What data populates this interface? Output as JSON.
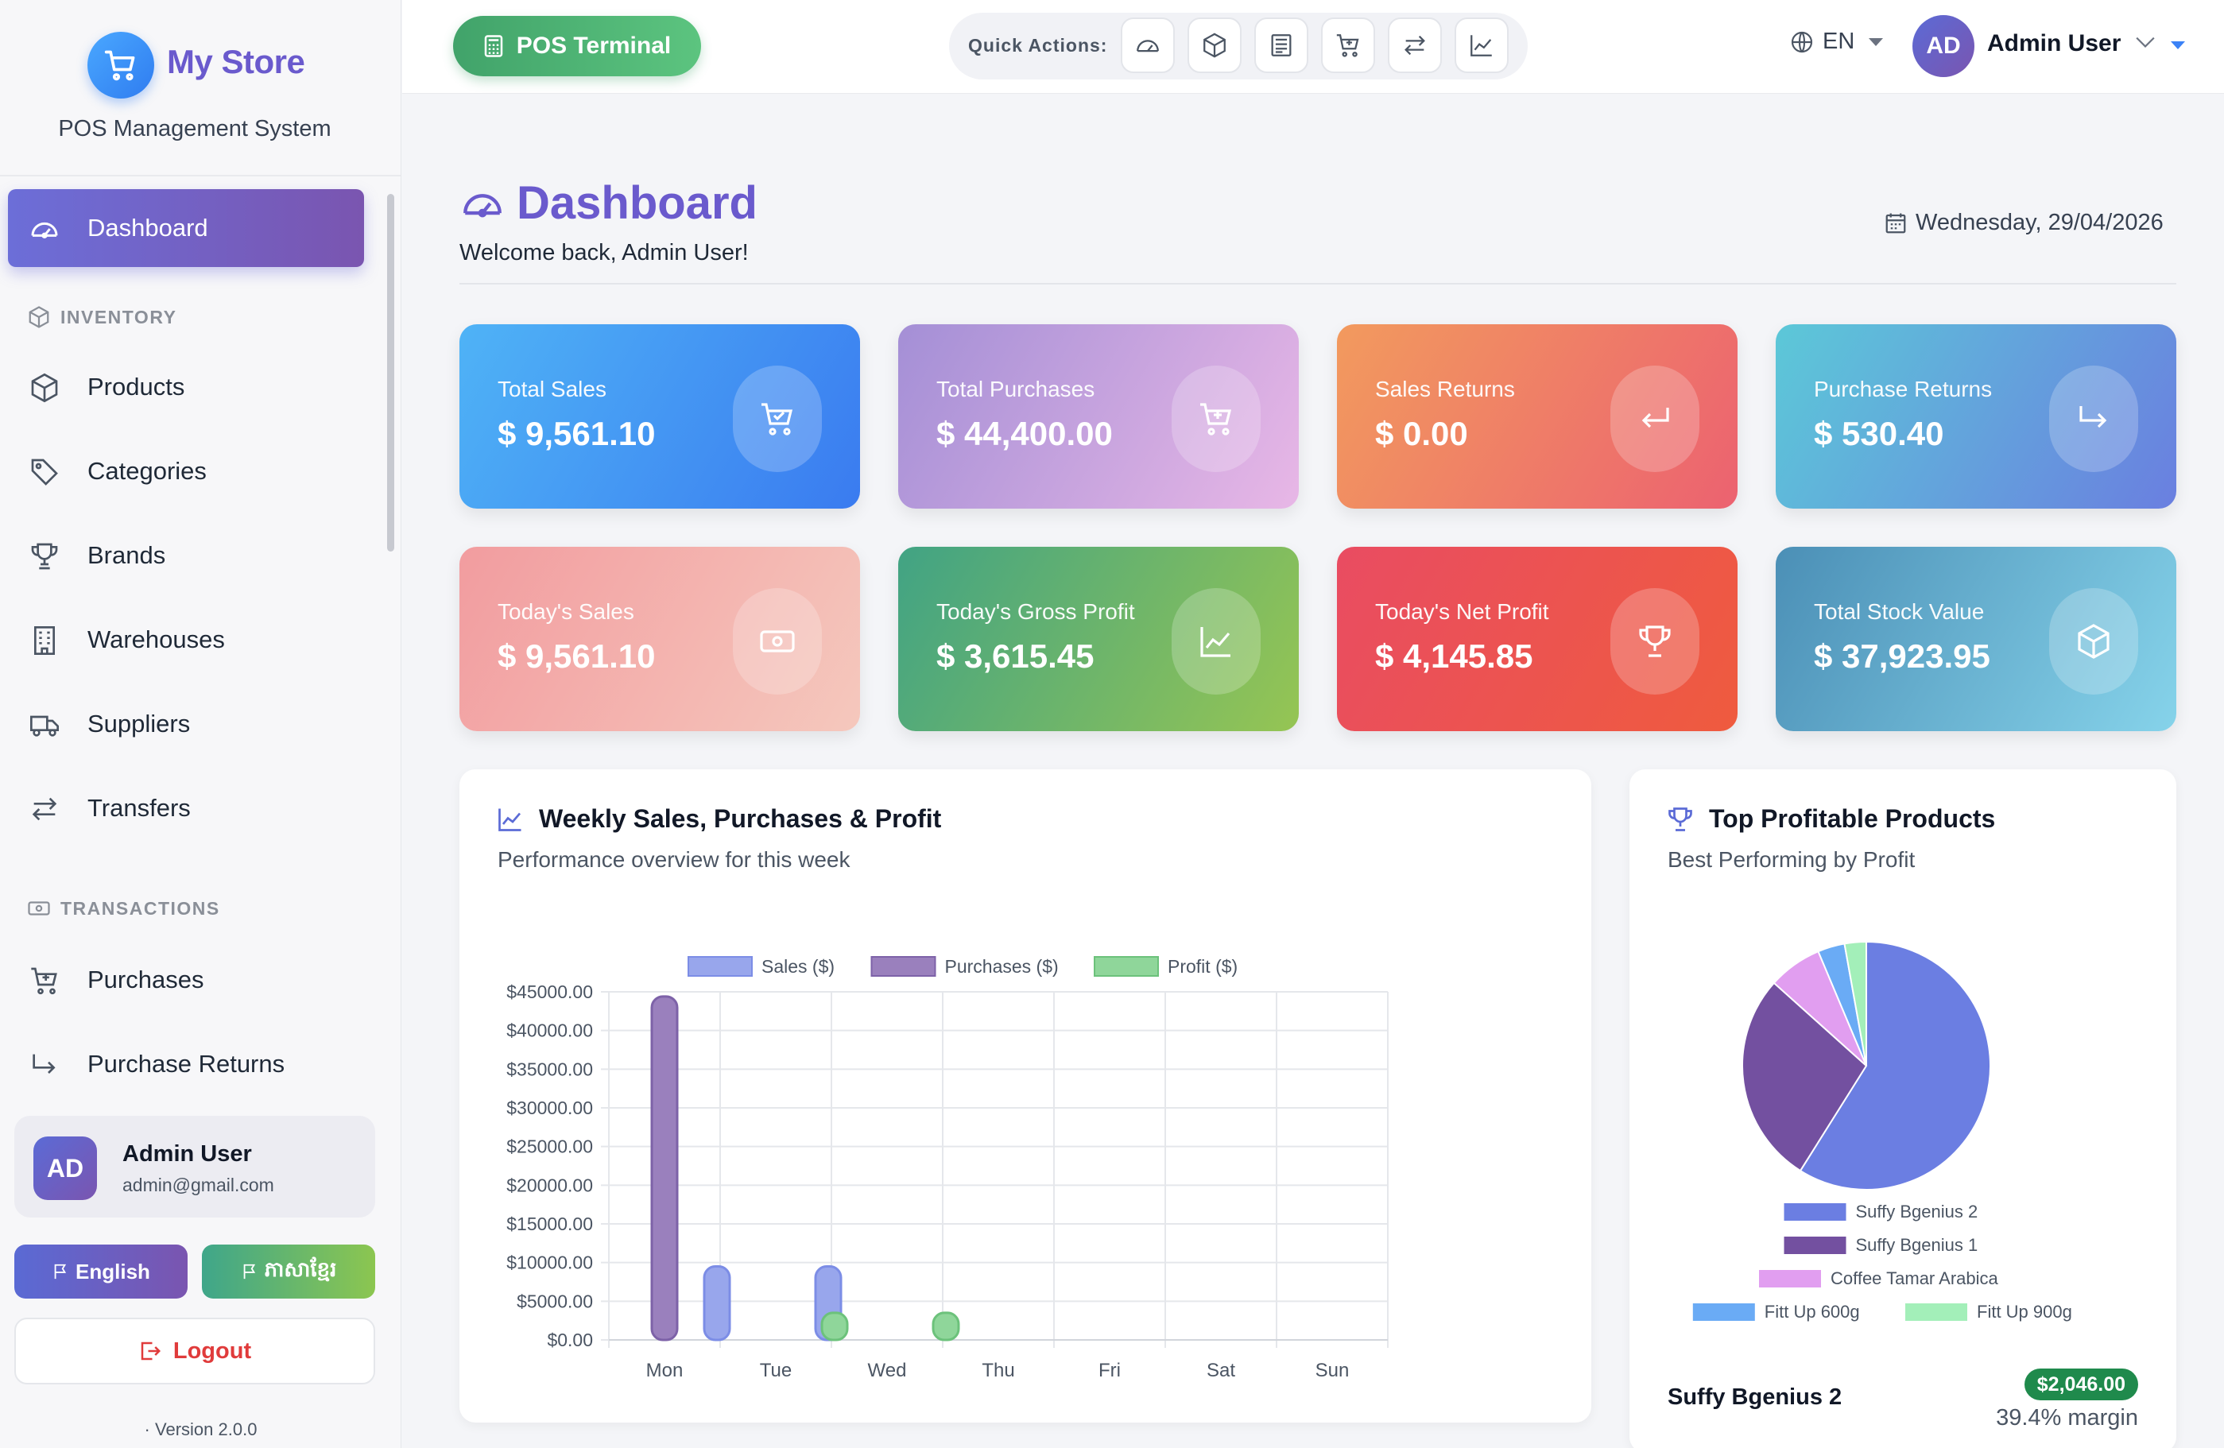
{
  "brand": {
    "name": "My Store",
    "subtitle": "POS Management System"
  },
  "sidebar": {
    "items": [
      {
        "label": "Dashboard",
        "icon": "dashboard-icon",
        "active": true
      },
      {
        "label": "Products",
        "icon": "box-icon"
      },
      {
        "label": "Categories",
        "icon": "tags-icon"
      },
      {
        "label": "Brands",
        "icon": "trophy-icon"
      },
      {
        "label": "Warehouses",
        "icon": "building-icon"
      },
      {
        "label": "Suppliers",
        "icon": "truck-icon"
      },
      {
        "label": "Transfers",
        "icon": "arrows-icon"
      },
      {
        "label": "Purchases",
        "icon": "cart-plus-icon"
      },
      {
        "label": "Purchase Returns",
        "icon": "return-arrow-icon"
      }
    ],
    "sections": {
      "inventory": "INVENTORY",
      "transactions": "TRANSACTIONS"
    },
    "user": {
      "initials": "AD",
      "name": "Admin User",
      "email": "admin@gmail.com"
    },
    "lang_buttons": {
      "english": "English",
      "khmer": "ភាសាខ្មែរ"
    },
    "logout": "Logout",
    "version": "Version 2.0.0"
  },
  "topbar": {
    "pos_button": "POS Terminal",
    "quick_actions_label": "Quick Actions:",
    "quick_actions": [
      "dashboard-icon",
      "box-icon",
      "report-icon",
      "cart-plus-icon",
      "transfer-icon",
      "chart-line-icon"
    ],
    "language": "EN",
    "user": {
      "initials": "AD",
      "name": "Admin User"
    }
  },
  "page": {
    "title": "Dashboard",
    "welcome": "Welcome back, Admin User!",
    "date": "Wednesday, 29/04/2026"
  },
  "stats": [
    {
      "label": "Total Sales",
      "value": "$ 9,561.10",
      "icon": "cart-check-icon",
      "gradient": [
        "#4fb3f6",
        "#3a7bf0"
      ]
    },
    {
      "label": "Total Purchases",
      "value": "$ 44,400.00",
      "icon": "cart-plus-icon",
      "gradient": [
        "#a48fd6",
        "#e8b7e6"
      ]
    },
    {
      "label": "Sales Returns",
      "value": "$ 0.00",
      "icon": "return-icon",
      "gradient": [
        "#f29a5e",
        "#ec6270"
      ]
    },
    {
      "label": "Purchase Returns",
      "value": "$ 530.40",
      "icon": "forward-icon",
      "gradient": [
        "#5cc8d8",
        "#6a7fe0"
      ]
    },
    {
      "label": "Today's Sales",
      "value": "$ 9,561.10",
      "icon": "cash-icon",
      "gradient": [
        "#f29c9f",
        "#f5c8bd"
      ]
    },
    {
      "label": "Today's Gross Profit",
      "value": "$ 3,615.45",
      "icon": "chart-line-icon",
      "gradient": [
        "#41a384",
        "#96c553"
      ]
    },
    {
      "label": "Today's Net Profit",
      "value": "$ 4,145.85",
      "icon": "trophy-icon",
      "gradient": [
        "#e94c62",
        "#ef5b3e"
      ]
    },
    {
      "label": "Total Stock Value",
      "value": "$ 37,923.95",
      "icon": "box-icon",
      "gradient": [
        "#4b8fb6",
        "#86d3ea"
      ]
    }
  ],
  "weekly": {
    "title": "Weekly Sales, Purchases & Profit",
    "subtitle": "Performance overview for this week"
  },
  "top_products": {
    "title": "Top Profitable Products",
    "subtitle": "Best Performing by Profit",
    "first": {
      "name": "Suffy Bgenius 2",
      "profit": "$2,046.00",
      "margin": "39.4% margin"
    }
  },
  "chart_data": [
    {
      "type": "bar",
      "categories": [
        "Mon",
        "Tue",
        "Wed",
        "Thu",
        "Fri",
        "Sat",
        "Sun"
      ],
      "series": [
        {
          "name": "Sales ($)",
          "values": [
            0,
            9500,
            9500,
            0,
            0,
            0,
            0
          ],
          "color": "#98a6ec",
          "border": "#7c8de6"
        },
        {
          "name": "Purchases ($)",
          "values": [
            44400,
            0,
            0,
            0,
            0,
            0,
            0
          ],
          "color": "#9a80bd",
          "border": "#7d62a8"
        },
        {
          "name": "Profit ($)",
          "values": [
            0,
            3500,
            3500,
            0,
            0,
            0,
            0
          ],
          "color": "#8fd69a",
          "border": "#6cc27b"
        }
      ],
      "yticks": [
        "$0.00",
        "$5000.00",
        "$10000.00",
        "$15000.00",
        "$20000.00",
        "$25000.00",
        "$30000.00",
        "$35000.00",
        "$40000.00",
        "$45000.00"
      ],
      "ylim": [
        0,
        45000
      ],
      "legend": "top",
      "grid": true
    },
    {
      "type": "pie",
      "labels": [
        "Suffy Bgenius 2",
        "Suffy Bgenius 1",
        "Coffee Tamar Arabica",
        "Fitt Up 600g",
        "Fitt Up 900g"
      ],
      "values": [
        2046,
        962,
        244,
        122,
        98
      ],
      "colors": [
        "#6b7ee2",
        "#7350a0",
        "#e19ef0",
        "#6aabf5",
        "#a3efb9"
      ],
      "legend": "bottom"
    }
  ]
}
